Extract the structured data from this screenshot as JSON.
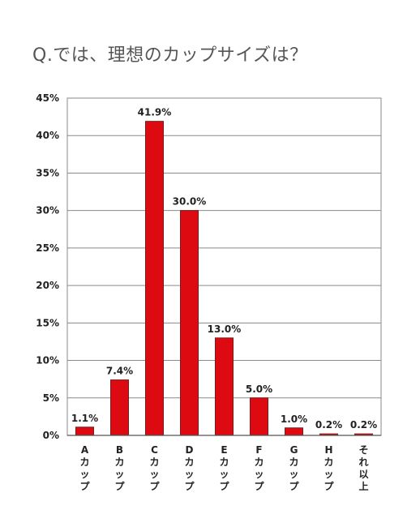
{
  "chart_data": {
    "type": "bar",
    "title": "Q.では、理想のカップサイズは？",
    "xlabel": "",
    "ylabel": "",
    "ylim": [
      0,
      45
    ],
    "yticks": [
      0,
      5,
      10,
      15,
      20,
      25,
      30,
      35,
      40,
      45
    ],
    "ytick_labels": [
      "0%",
      "5%",
      "10%",
      "15%",
      "20%",
      "25%",
      "30%",
      "35%",
      "40%",
      "45%"
    ],
    "grid": true,
    "categories": [
      "Aカップ",
      "Bカップ",
      "Cカップ",
      "Dカップ",
      "Eカップ",
      "Fカップ",
      "Gカップ",
      "Hカップ",
      "それ以上"
    ],
    "category_lines": [
      [
        "A",
        "カ",
        "ッ",
        "プ"
      ],
      [
        "B",
        "カ",
        "ッ",
        "プ"
      ],
      [
        "C",
        "カ",
        "ッ",
        "プ"
      ],
      [
        "D",
        "カ",
        "ッ",
        "プ"
      ],
      [
        "E",
        "カ",
        "ッ",
        "プ"
      ],
      [
        "F",
        "カ",
        "ッ",
        "プ"
      ],
      [
        "G",
        "カ",
        "ッ",
        "プ"
      ],
      [
        "H",
        "カ",
        "ッ",
        "プ"
      ],
      [
        "そ",
        "れ",
        "以",
        "上"
      ]
    ],
    "values": [
      1.1,
      7.4,
      41.9,
      30.0,
      13.0,
      5.0,
      1.0,
      0.2,
      0.2
    ],
    "data_labels": [
      "1.1%",
      "7.4%",
      "41.9%",
      "30.0%",
      "13.0%",
      "5.0%",
      "1.0%",
      "0.2%",
      "0.2%"
    ],
    "bar_color": "#dd0a12",
    "bar_edge_color": "#7a1a1a",
    "grid_color": "#8a8a8a"
  }
}
